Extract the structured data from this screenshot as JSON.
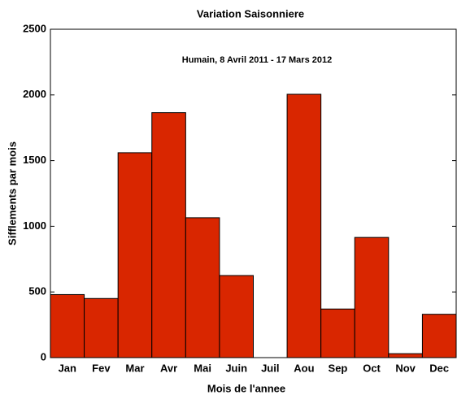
{
  "chart_data": {
    "type": "bar",
    "title": "Variation Saisonniere",
    "annotation": "Humain, 8 Avril 2011 - 17 Mars 2012",
    "x_label": "Mois de l'annee",
    "y_label": "Sifflements par mois",
    "categories": [
      "Jan",
      "Fev",
      "Mar",
      "Avr",
      "Mai",
      "Juin",
      "Juil",
      "Aou",
      "Sep",
      "Oct",
      "Nov",
      "Dec"
    ],
    "values": [
      480,
      450,
      1560,
      1865,
      1065,
      625,
      0,
      2005,
      370,
      915,
      30,
      330
    ],
    "color": "#d92600",
    "ylim": [
      0,
      2500
    ],
    "yticks": [
      0,
      500,
      1000,
      1500,
      2000,
      2500
    ],
    "grid": false
  }
}
